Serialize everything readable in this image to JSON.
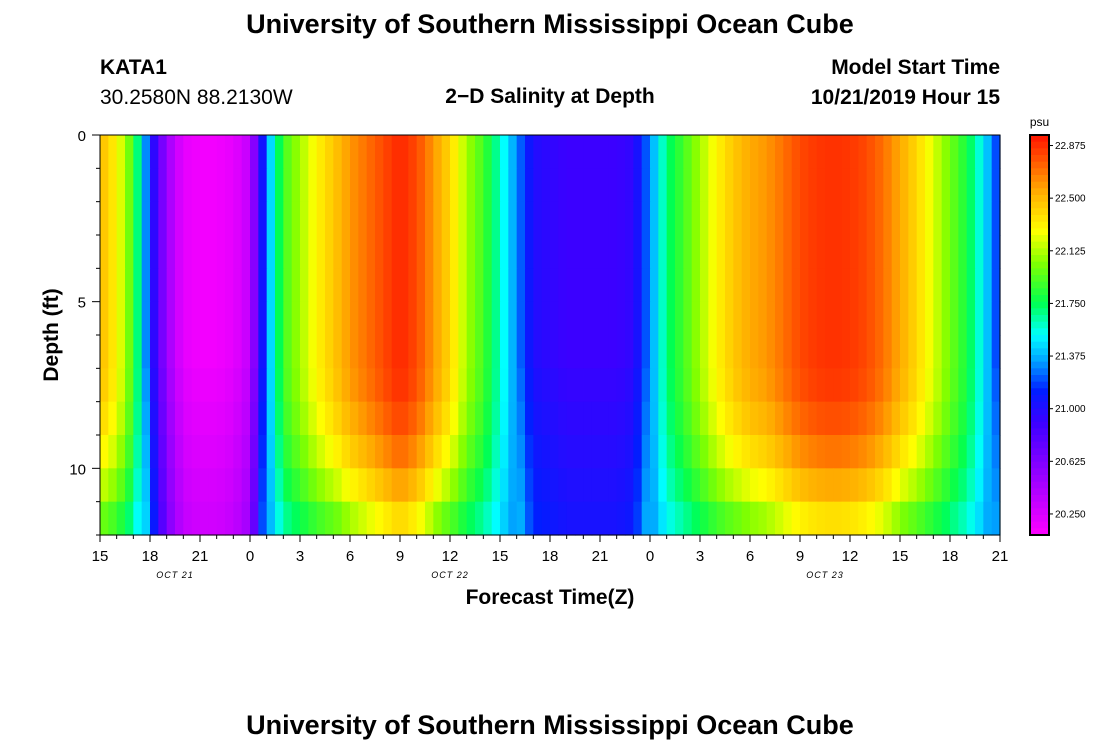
{
  "page": {
    "title_top": "University of Southern Mississippi Ocean Cube",
    "title_bottom": "University of Southern Mississippi Ocean Cube",
    "station": {
      "name": "KATA1",
      "coords": "30.2580N 88.2130W"
    },
    "plot_title": "2−D Salinity at Depth",
    "model_start": {
      "label": "Model Start Time",
      "value": "10/21/2019 Hour 15"
    }
  },
  "chart_data": {
    "type": "heatmap",
    "title": "2−D Salinity at Depth",
    "xlabel": "Forecast Time(Z)",
    "ylabel": "Depth (ft)",
    "x_range_hours": [
      0,
      54
    ],
    "x_tick_labels": [
      "15",
      "18",
      "21",
      "0",
      "3",
      "6",
      "9",
      "12",
      "15",
      "18",
      "21",
      "0",
      "3",
      "6",
      "9",
      "12",
      "15",
      "18",
      "21"
    ],
    "x_date_labels": [
      {
        "label": "OCT 21",
        "hour": 4.5
      },
      {
        "label": "OCT 22",
        "hour": 21
      },
      {
        "label": "OCT 23",
        "hour": 43.5
      }
    ],
    "ylim": [
      0,
      12
    ],
    "y_ticks": [
      0,
      5,
      10
    ],
    "colorbar": {
      "unit": "psu",
      "min": 20.1,
      "max": 22.95,
      "tick_values": [
        22.875,
        22.5,
        22.125,
        21.75,
        21.375,
        21.0,
        20.625,
        20.25
      ],
      "tick_labels": [
        "22.875",
        "22.500",
        "22.125",
        "21.750",
        "21.375",
        "21.000",
        "20.625",
        "20.250"
      ]
    },
    "surface_salinity_profile": {
      "hours": [
        0,
        1,
        2,
        3,
        4,
        5,
        6,
        7,
        8,
        9,
        10,
        11,
        12,
        13,
        14,
        15,
        16,
        17,
        18,
        19,
        20,
        21,
        22,
        23,
        24,
        25,
        26,
        27,
        28,
        29,
        30,
        31,
        32,
        33,
        34,
        35,
        36,
        37,
        38,
        39,
        40,
        41,
        42,
        43,
        44,
        45,
        46,
        47,
        48,
        49,
        50,
        51,
        52,
        53,
        54
      ],
      "values": [
        22.5,
        22.3,
        21.9,
        21.1,
        20.5,
        20.2,
        20.15,
        20.15,
        20.2,
        20.35,
        21.3,
        21.9,
        22.1,
        22.3,
        22.45,
        22.6,
        22.7,
        22.8,
        22.9,
        22.8,
        22.6,
        22.4,
        22.1,
        21.9,
        21.6,
        21.3,
        21.0,
        20.95,
        20.9,
        20.9,
        20.9,
        20.9,
        20.95,
        21.3,
        21.7,
        21.9,
        22.1,
        22.3,
        22.45,
        22.55,
        22.6,
        22.7,
        22.8,
        22.85,
        22.87,
        22.85,
        22.8,
        22.7,
        22.55,
        22.4,
        22.2,
        22.0,
        21.8,
        21.5,
        21.1
      ]
    },
    "depth_effect": {
      "note": "Plateau about 22.9 psu near surface around Oct 23 hour 12, fading with depth; lower values near 12 ft",
      "bottom_offset_max": 0.6
    }
  }
}
